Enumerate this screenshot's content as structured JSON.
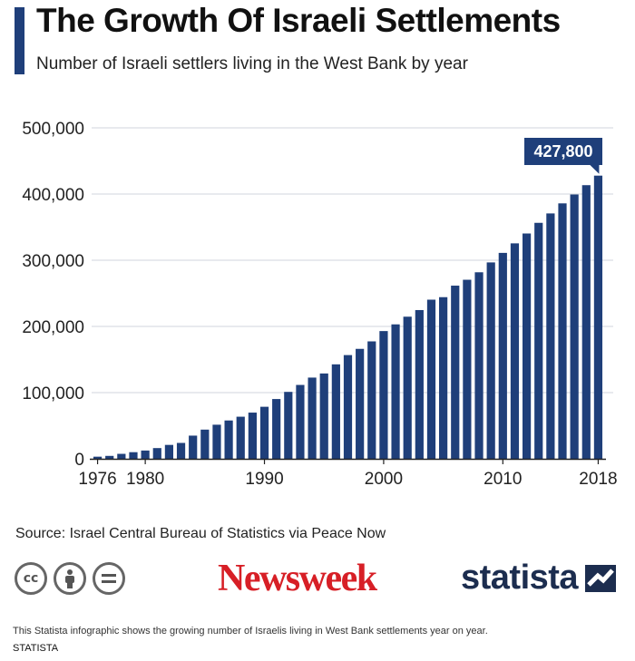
{
  "header": {
    "title": "The Growth Of Israeli Settlements",
    "subtitle": "Number of Israeli settlers living in the West Bank by year"
  },
  "chart_data": {
    "type": "bar",
    "title": "The Growth Of Israeli Settlements",
    "subtitle": "Number of Israeli settlers living in the West Bank by year",
    "xlabel": "",
    "ylabel": "",
    "ylim": [
      0,
      500000
    ],
    "grid": true,
    "yticks": [
      0,
      100000,
      200000,
      300000,
      400000,
      500000
    ],
    "ytick_labels": [
      "0",
      "100,000",
      "200,000",
      "300,000",
      "400,000",
      "500,000"
    ],
    "xtick_labels": [
      "1976",
      "1980",
      "1990",
      "2000",
      "2010",
      "2018"
    ],
    "xtick_years": [
      1976,
      1980,
      1990,
      2000,
      2010,
      2018
    ],
    "bar_color": "#1f3f7a",
    "categories": [
      1976,
      1977,
      1978,
      1979,
      1980,
      1981,
      1982,
      1983,
      1984,
      1985,
      1986,
      1987,
      1988,
      1989,
      1990,
      1991,
      1992,
      1993,
      1994,
      1995,
      1996,
      1997,
      1998,
      1999,
      2000,
      2001,
      2002,
      2003,
      2004,
      2005,
      2006,
      2007,
      2008,
      2009,
      2010,
      2011,
      2012,
      2013,
      2014,
      2015,
      2016,
      2017,
      2018
    ],
    "values": [
      3200,
      4400,
      7500,
      10000,
      12500,
      16200,
      21000,
      24000,
      35000,
      44100,
      51500,
      57900,
      63600,
      69800,
      78600,
      90300,
      101100,
      111600,
      122700,
      128900,
      142700,
      156700,
      166100,
      177400,
      192976,
      203100,
      214700,
      224700,
      240400,
      244200,
      261600,
      270500,
      281800,
      296700,
      311100,
      325500,
      340400,
      356500,
      370700,
      385900,
      399300,
      413400,
      427800
    ],
    "annotations": [
      {
        "year": 2018,
        "label": "427,800"
      }
    ]
  },
  "source": "Source: Israel Central Bureau of Statistics via Peace Now",
  "footer": {
    "description": "This Statista infographic shows the growing number of Israelis living in West Bank settlements year on year.",
    "brand": "STATISTA"
  },
  "logos": {
    "newsweek": "Newsweek",
    "statista": "statista",
    "license_icons": [
      "cc-icon",
      "attribution-icon",
      "no-derivatives-icon"
    ]
  }
}
